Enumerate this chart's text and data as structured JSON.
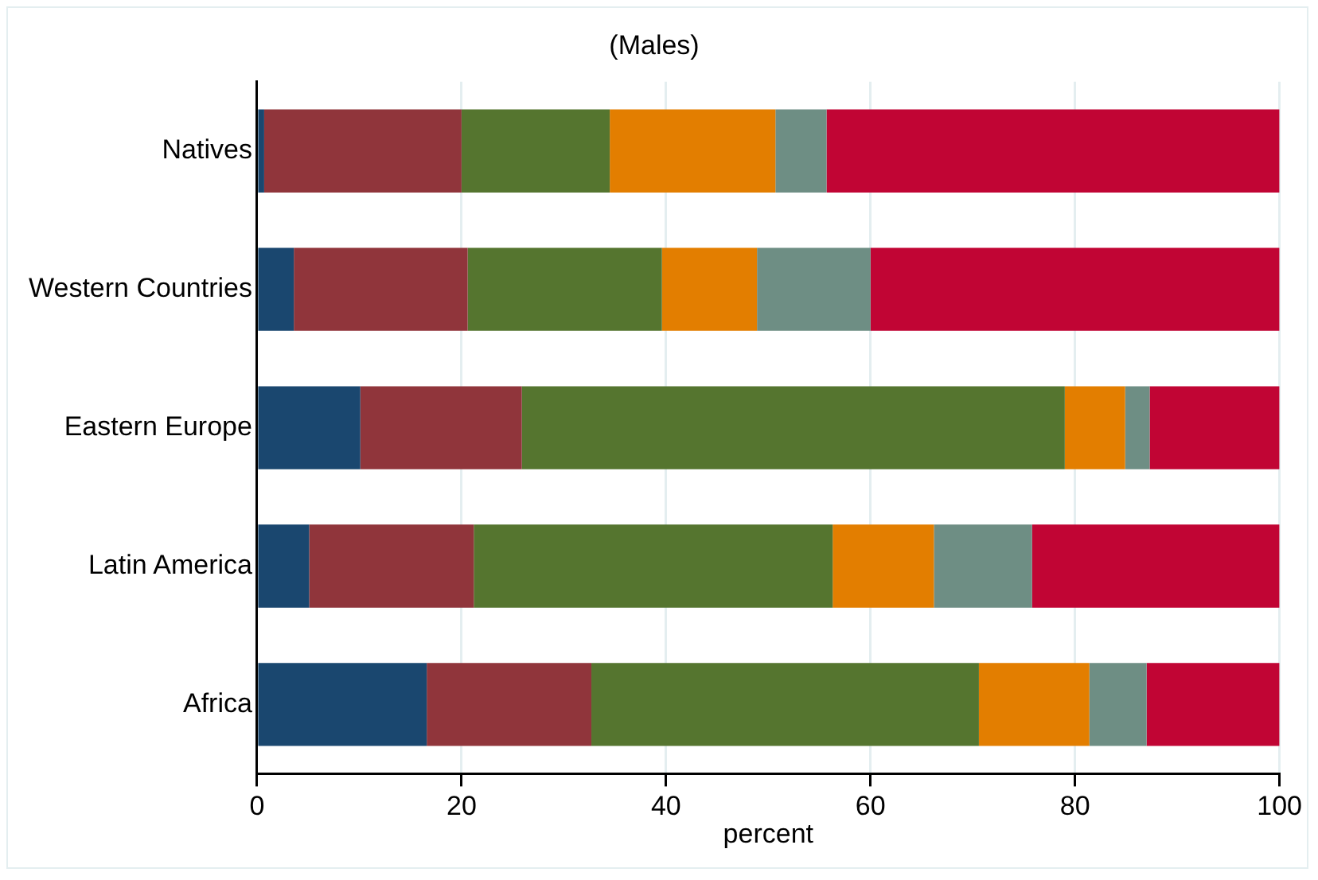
{
  "chart_data": {
    "type": "bar",
    "orientation": "horizontal",
    "stacked": true,
    "title": "(Males)",
    "xlabel": "percent",
    "categories": [
      "Natives",
      "Western Countries",
      "Eastern Europe",
      "Latin America",
      "Africa"
    ],
    "series": [
      {
        "color": "#1a476f",
        "values": [
          0.7,
          3.6,
          10.1,
          5.1,
          16.6
        ]
      },
      {
        "color": "#90353b",
        "values": [
          19.3,
          17.0,
          15.8,
          16.1,
          16.1
        ]
      },
      {
        "color": "#55752f",
        "values": [
          14.5,
          19.0,
          53.1,
          35.1,
          37.9
        ]
      },
      {
        "color": "#e37e00",
        "values": [
          16.2,
          9.3,
          5.9,
          9.9,
          10.8
        ]
      },
      {
        "color": "#6e8e84",
        "values": [
          5.0,
          11.1,
          2.4,
          9.6,
          5.6
        ]
      },
      {
        "color": "#c10534",
        "values": [
          44.3,
          40.0,
          12.7,
          24.2,
          13.0
        ]
      }
    ],
    "xlim": [
      0,
      100
    ],
    "xticks": [
      0,
      20,
      40,
      60,
      80,
      100
    ],
    "grid": "x",
    "legend": false
  }
}
